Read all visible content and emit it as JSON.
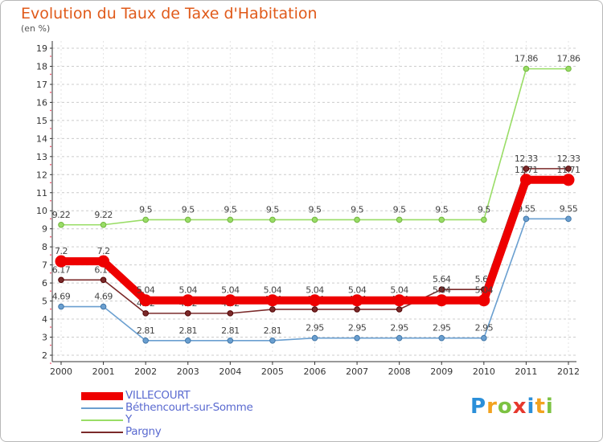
{
  "title": "Evolution du Taux de Taxe d'Habitation",
  "unit": "(en %)",
  "logo_text": "Proxiti",
  "chart_data": {
    "type": "line",
    "title": "Evolution du Taux de Taxe d'Habitation",
    "ylabel": "(en %)",
    "xlabel": "",
    "categories": [
      "2000",
      "2001",
      "2002",
      "2003",
      "2004",
      "2005",
      "2006",
      "2007",
      "2008",
      "2009",
      "2010",
      "2011",
      "2012"
    ],
    "ylim": [
      2,
      19
    ],
    "yticks": [
      "2",
      "3",
      "4",
      "5",
      "6",
      "7",
      "8",
      "9",
      "10",
      "11",
      "12",
      "13",
      "14",
      "15",
      "16",
      "17",
      "18",
      "19"
    ],
    "grid": "horizontal dashed",
    "legend_position": "bottom-left",
    "series": [
      {
        "name": "VILLECOURT",
        "color": "#ee0000",
        "values": [
          7.2,
          7.2,
          5.04,
          5.04,
          5.04,
          5.04,
          5.04,
          5.04,
          5.04,
          5.04,
          5.04,
          11.71,
          11.71
        ],
        "labels": [
          "7.2",
          "7.2",
          "5.04",
          "5.04",
          "5.04",
          "5.04",
          "5.04",
          "5.04",
          "5.04",
          "5.04",
          "5.04",
          "11.71",
          "11.71"
        ]
      },
      {
        "name": "Béthencourt-sur-Somme",
        "color": "#6a9fd0",
        "values": [
          4.69,
          4.69,
          2.81,
          2.81,
          2.81,
          2.81,
          2.95,
          2.95,
          2.95,
          2.95,
          2.95,
          9.55,
          9.55
        ],
        "labels": [
          "4.69",
          "4.69",
          "2.81",
          "2.81",
          "2.81",
          "2.81",
          "2.95",
          "2.95",
          "2.95",
          "2.95",
          "2.95",
          "9.55",
          "9.55"
        ]
      },
      {
        "name": "Y",
        "color": "#99dd66",
        "values": [
          9.22,
          9.22,
          9.5,
          9.5,
          9.5,
          9.5,
          9.5,
          9.5,
          9.5,
          9.5,
          9.5,
          17.86,
          17.86
        ],
        "labels": [
          "9.22",
          "9.22",
          "9.5",
          "9.5",
          "9.5",
          "9.5",
          "9.5",
          "9.5",
          "9.5",
          "9.5",
          "9.5",
          "17.86",
          "17.86"
        ]
      },
      {
        "name": "Pargny",
        "color": "#7b2a2a",
        "values": [
          6.17,
          6.17,
          4.32,
          4.32,
          4.32,
          4.54,
          4.54,
          4.54,
          4.54,
          5.64,
          5.64,
          12.33,
          12.33
        ],
        "labels": [
          "6.17",
          "6.17",
          "4.32",
          "4.32",
          "4.32",
          "4.54",
          "4.54",
          "4.54",
          "4.54",
          "5.64",
          "5.64",
          "12.33",
          "12.33"
        ]
      }
    ]
  }
}
